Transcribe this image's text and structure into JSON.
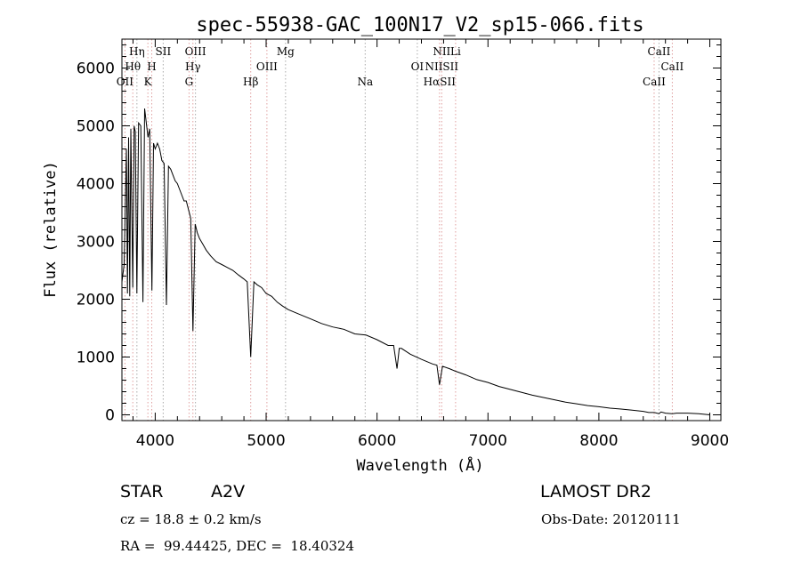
{
  "chart_data": {
    "type": "line",
    "title": "spec-55938-GAC_100N17_V2_sp15-066.fits",
    "xlabel": "Wavelength (Å)",
    "ylabel": "Flux (relative)",
    "xlim": [
      3700,
      9100
    ],
    "ylim": [
      -100,
      6500
    ],
    "xticks": [
      4000,
      5000,
      6000,
      7000,
      8000,
      9000
    ],
    "yticks": [
      0,
      1000,
      2000,
      3000,
      4000,
      5000,
      6000
    ],
    "grid": false,
    "series": [
      {
        "x": [
          3700,
          3720,
          3740,
          3750,
          3760,
          3771,
          3780,
          3798,
          3810,
          3820,
          3835,
          3850,
          3870,
          3889,
          3905,
          3920,
          3935,
          3950,
          3970,
          3985,
          4000,
          4020,
          4040,
          4060,
          4080,
          4101,
          4120,
          4140,
          4160,
          4180,
          4200,
          4220,
          4240,
          4260,
          4280,
          4300,
          4320,
          4340,
          4360,
          4380,
          4400,
          4430,
          4460,
          4500,
          4550,
          4600,
          4650,
          4700,
          4750,
          4800,
          4830,
          4861,
          4890,
          4920,
          4960,
          5000,
          5050,
          5100,
          5150,
          5200,
          5300,
          5400,
          5500,
          5600,
          5700,
          5800,
          5900,
          6000,
          6100,
          6150,
          6180,
          6200,
          6220,
          6300,
          6400,
          6500,
          6540,
          6563,
          6590,
          6650,
          6700,
          6800,
          6900,
          7000,
          7100,
          7200,
          7300,
          7400,
          7500,
          7600,
          7700,
          7800,
          7900,
          8000,
          8100,
          8200,
          8300,
          8400,
          8450,
          8500,
          8542,
          8560,
          8600,
          8662,
          8700,
          8800,
          8900,
          9000
        ],
        "y": [
          2300,
          2600,
          4600,
          2100,
          4800,
          2050,
          4950,
          2200,
          5000,
          4900,
          2100,
          5050,
          5000,
          1950,
          5300,
          5050,
          4800,
          4950,
          2150,
          4700,
          4600,
          4700,
          4600,
          4400,
          4350,
          1900,
          4300,
          4250,
          4150,
          4050,
          4000,
          3900,
          3800,
          3700,
          3700,
          3550,
          3400,
          1450,
          3300,
          3150,
          3050,
          2950,
          2850,
          2750,
          2650,
          2600,
          2550,
          2500,
          2420,
          2350,
          2300,
          1000,
          2300,
          2250,
          2200,
          2100,
          2050,
          1950,
          1880,
          1820,
          1740,
          1660,
          1580,
          1520,
          1480,
          1400,
          1380,
          1300,
          1200,
          1200,
          800,
          1150,
          1150,
          1050,
          960,
          880,
          860,
          520,
          840,
          800,
          760,
          690,
          610,
          560,
          490,
          440,
          390,
          340,
          300,
          260,
          220,
          190,
          160,
          140,
          115,
          100,
          80,
          60,
          40,
          40,
          20,
          50,
          30,
          20,
          30,
          30,
          20,
          0
        ]
      }
    ],
    "line_markers": [
      {
        "label": "Hη",
        "x": 3835,
        "row": 0
      },
      {
        "label": "Hθ",
        "x": 3798,
        "row": 1
      },
      {
        "label": "OII",
        "x": 3727,
        "row": 2
      },
      {
        "label": "SII",
        "x": 4072,
        "row": 0
      },
      {
        "label": "H",
        "x": 3969,
        "row": 1
      },
      {
        "label": "K",
        "x": 3934,
        "row": 2
      },
      {
        "label": "OIII",
        "x": 4363,
        "row": 0
      },
      {
        "label": "Hγ",
        "x": 4340,
        "row": 1
      },
      {
        "label": "G",
        "x": 4305,
        "row": 2
      },
      {
        "label": "Mg",
        "x": 5175,
        "row": 0
      },
      {
        "label": "OIII",
        "x": 5007,
        "row": 1
      },
      {
        "label": "Hβ",
        "x": 4861,
        "row": 2
      },
      {
        "label": "Na",
        "x": 5893,
        "row": 2
      },
      {
        "label": "NII",
        "x": 6583,
        "row": 0
      },
      {
        "label": "Li",
        "x": 6708,
        "row": 0
      },
      {
        "label": "OI",
        "x": 6363,
        "row": 1
      },
      {
        "label": "NIISII",
        "x": 6583,
        "row": 1
      },
      {
        "label": "HαSII",
        "x": 6563,
        "row": 2
      },
      {
        "label": "CaII",
        "x": 8542,
        "row": 0
      },
      {
        "label": "CaII",
        "x": 8662,
        "row": 1
      },
      {
        "label": "CaII",
        "x": 8498,
        "row": 2
      }
    ],
    "colors": {
      "spectrum": "#000000",
      "marker_line": "#e0a0a0",
      "marker_line_alt": "#aaaaaa",
      "text": "#000000"
    }
  },
  "info": {
    "object_class": "STAR",
    "subclass": "A2V",
    "survey": "LAMOST DR2",
    "redshift": "cz = 18.8 ± 0.2 km/s",
    "obs_date": "Obs-Date: 20120111",
    "coords": "RA =  99.44425, DEC =  18.40324"
  }
}
